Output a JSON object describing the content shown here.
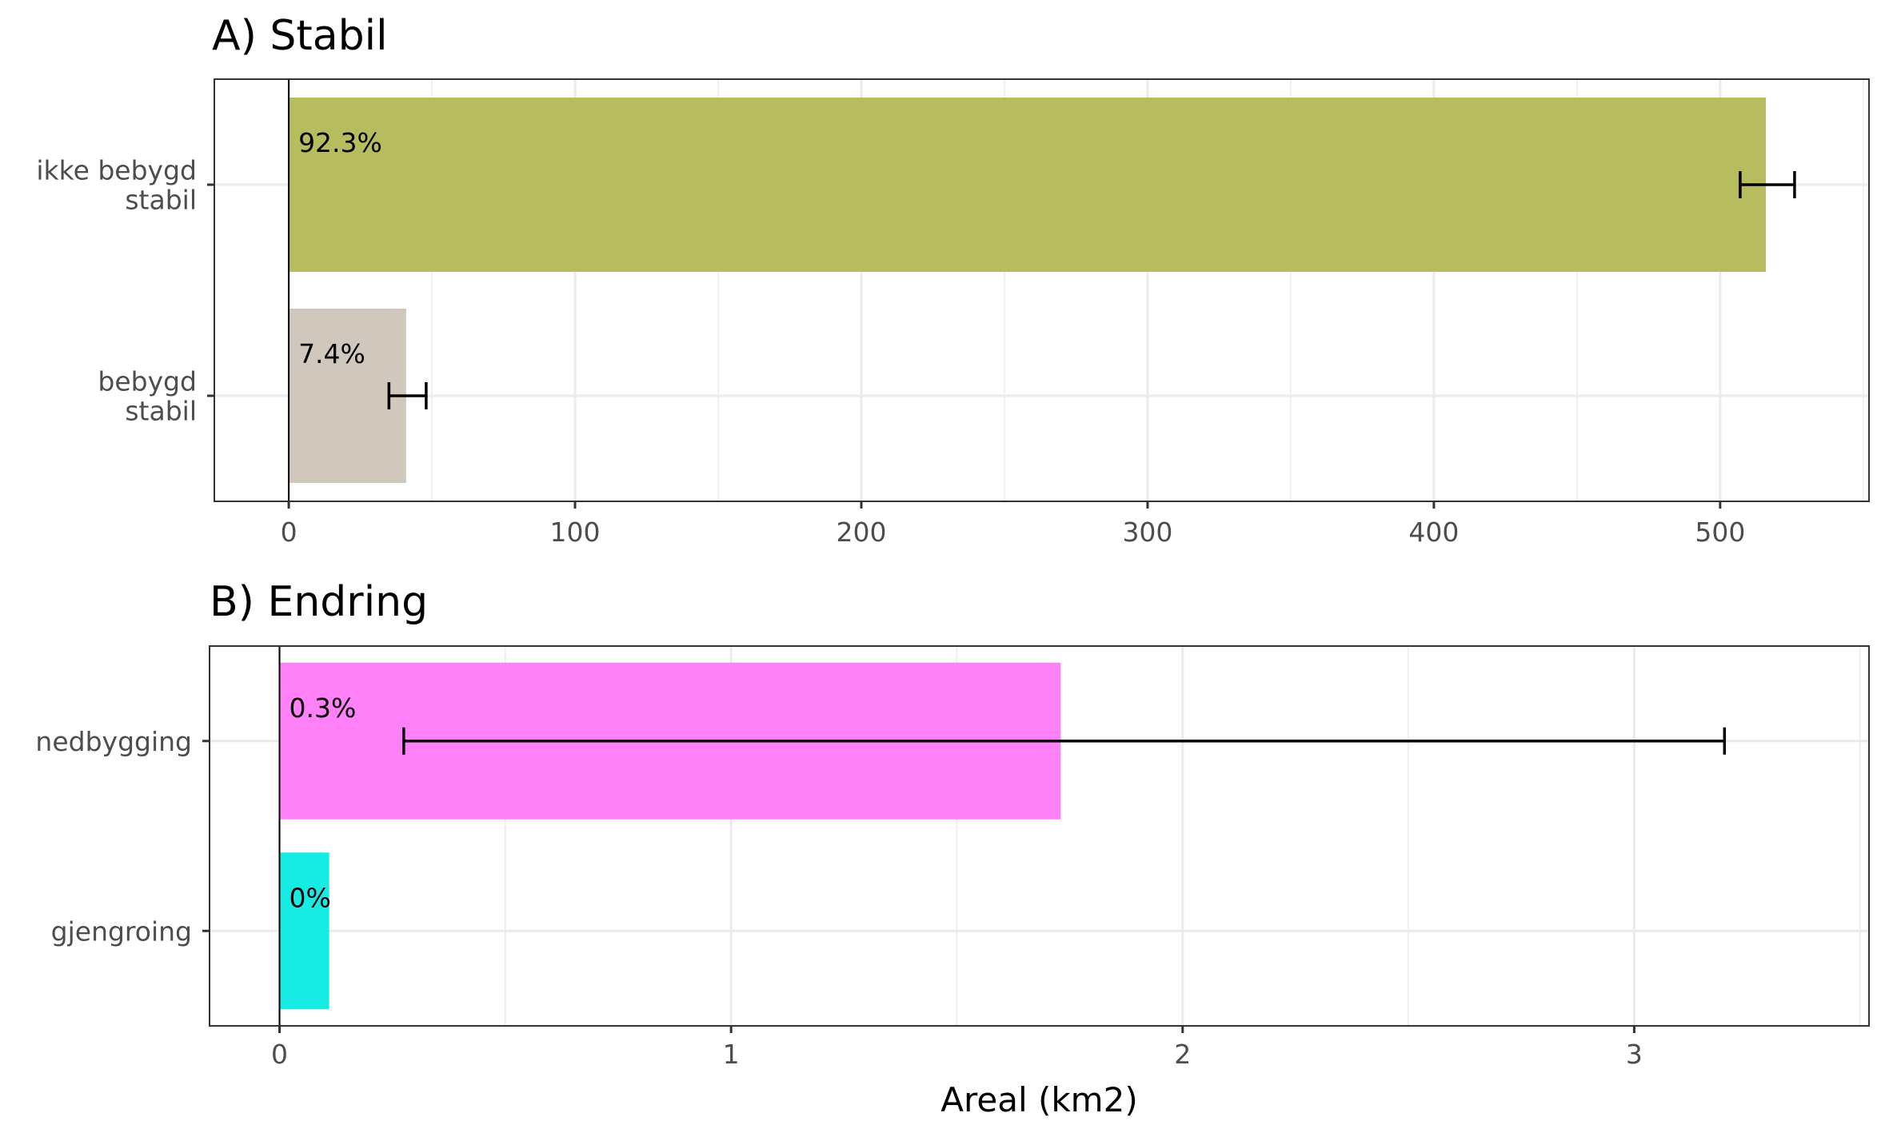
{
  "chart_data": [
    {
      "type": "bar",
      "orientation": "horizontal",
      "title": "A) Stabil",
      "xlabel": "",
      "ylabel": "",
      "xlim": [
        -26,
        552
      ],
      "xticks": [
        "0",
        "100",
        "200",
        "300",
        "400",
        "500"
      ],
      "xtick_values": [
        0,
        100,
        200,
        300,
        400,
        500
      ],
      "grid": true,
      "categories": [
        "ikke bebygd\nstabil",
        "bebygd\nstabil"
      ],
      "values": [
        516,
        41
      ],
      "error_low": [
        507,
        35
      ],
      "error_high": [
        526,
        48
      ],
      "labels": [
        "92.3%",
        "7.4%"
      ],
      "colors": [
        "#b7bc5e",
        "#d0c8bd"
      ]
    },
    {
      "type": "bar",
      "orientation": "horizontal",
      "title": "B) Endring",
      "xlabel": "Areal (km2)",
      "ylabel": "",
      "xlim": [
        -0.155,
        3.52
      ],
      "xticks": [
        "0",
        "1",
        "2",
        "3"
      ],
      "xtick_values": [
        0,
        1,
        2,
        3
      ],
      "grid": true,
      "categories": [
        "nedbygging",
        "gjengroing"
      ],
      "values": [
        1.73,
        0.11
      ],
      "error_low": [
        0.275,
        null
      ],
      "error_high": [
        3.2,
        null
      ],
      "labels": [
        "0.3%",
        "0%"
      ],
      "colors": [
        "#ff80f7",
        "#16ece4"
      ]
    }
  ]
}
